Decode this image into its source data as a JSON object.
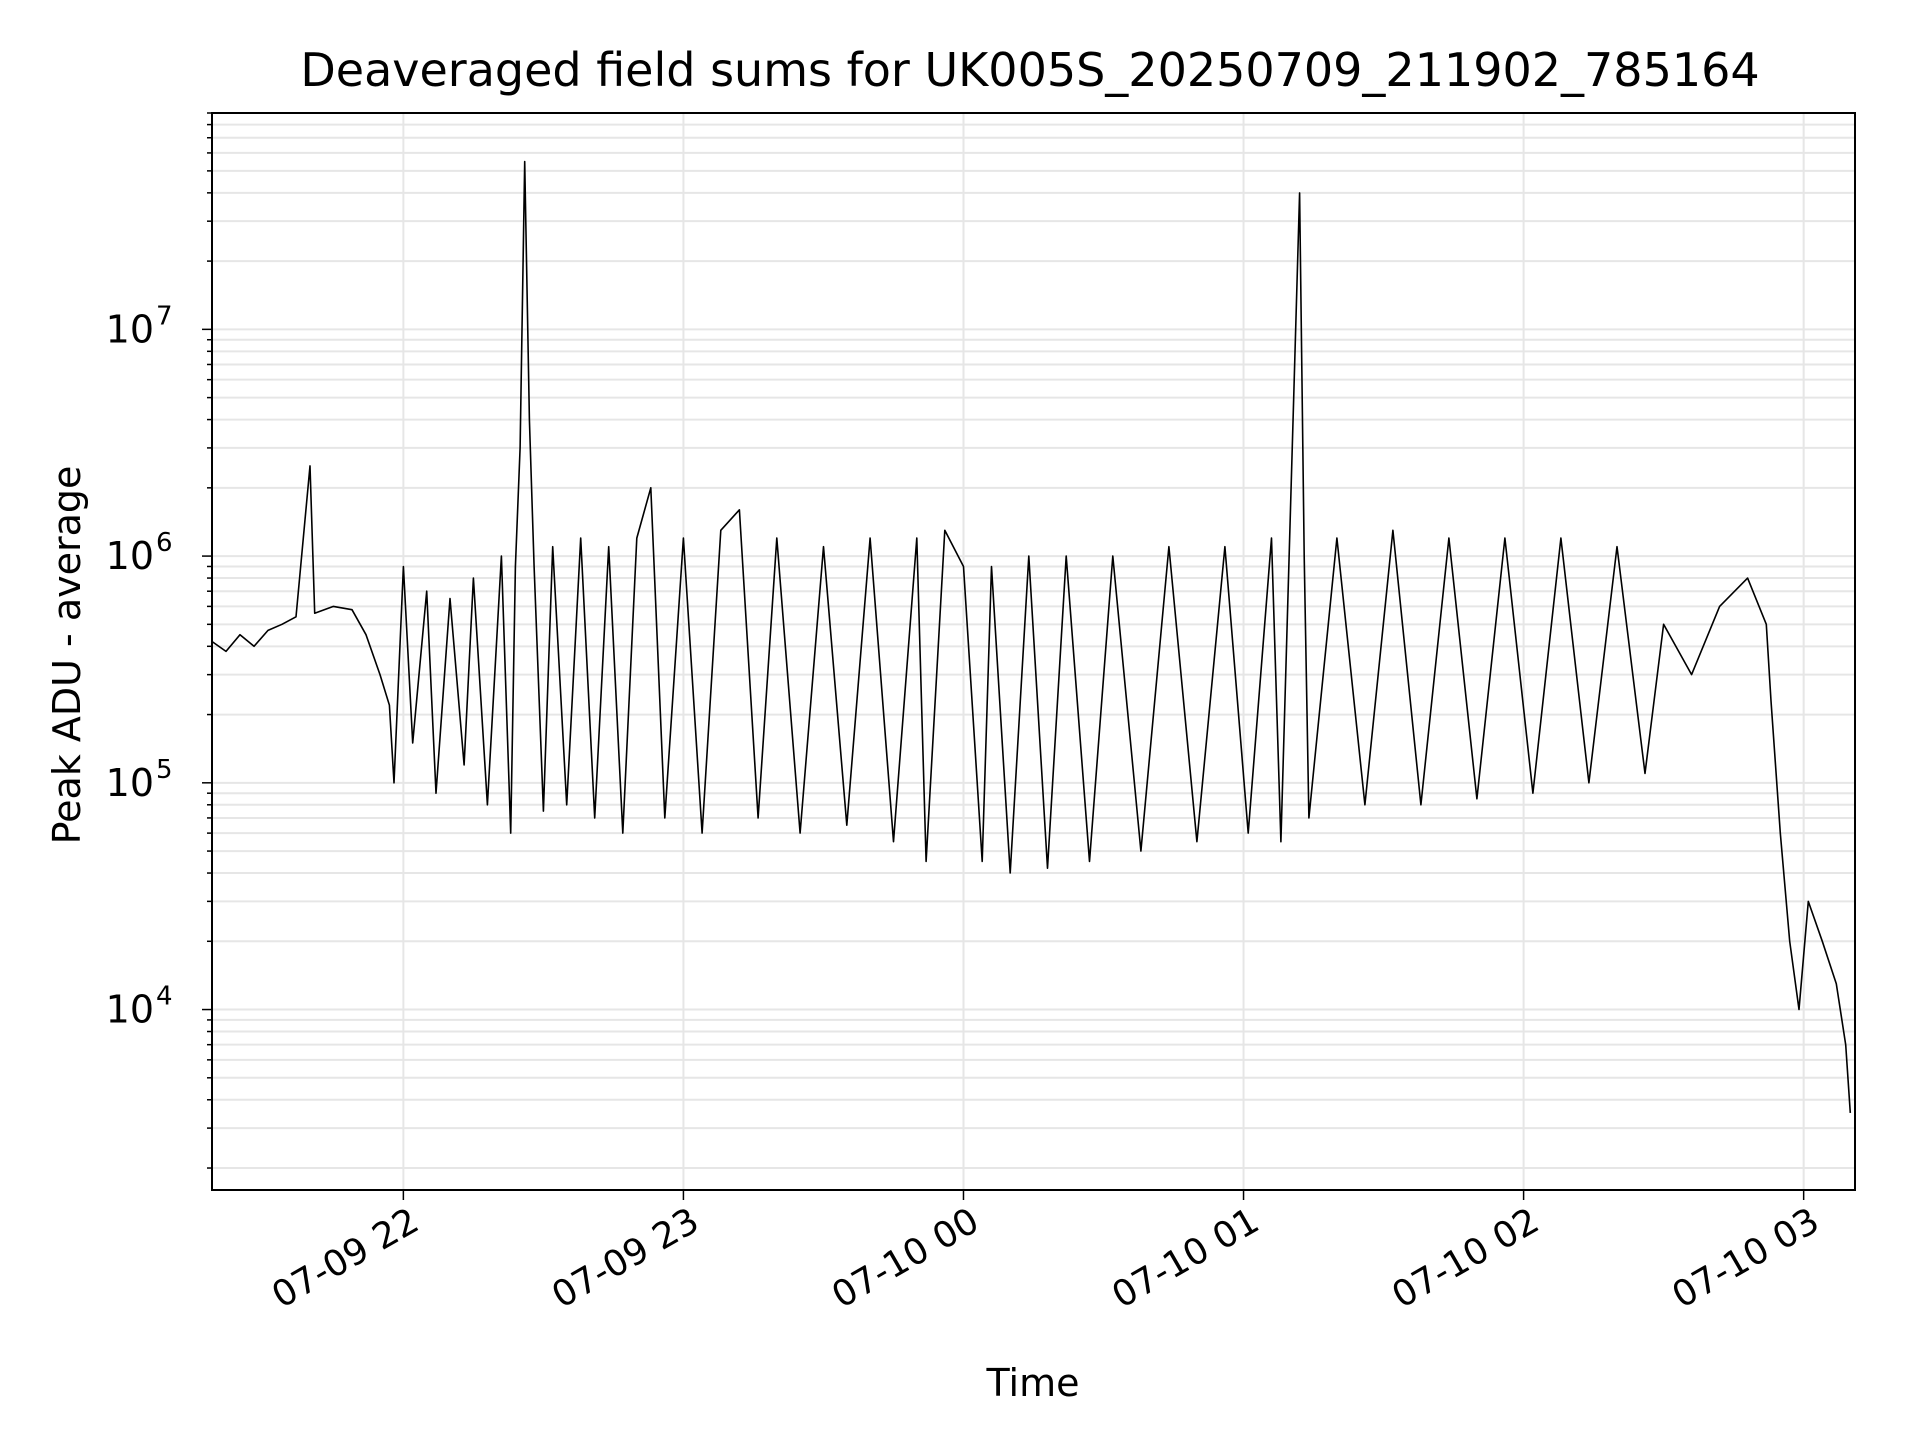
{
  "chart_data": {
    "type": "line",
    "title": "Deaveraged field sums for UK005S_20250709_211902_785164",
    "xlabel": "Time",
    "ylabel": "Peak ADU - average",
    "yscale": "log",
    "grid": true,
    "line_color": "#000000",
    "grid_color": "#e6e6e6",
    "x_range": [
      "2025-07-09 21:19:00",
      "2025-07-10 03:11:00"
    ],
    "ylim": [
      1600,
      90000000
    ],
    "x_ticks": [
      {
        "value": "2025-07-09 22:00:00",
        "label": "07-09 22"
      },
      {
        "value": "2025-07-09 23:00:00",
        "label": "07-09 23"
      },
      {
        "value": "2025-07-10 00:00:00",
        "label": "07-10 00"
      },
      {
        "value": "2025-07-10 01:00:00",
        "label": "07-10 01"
      },
      {
        "value": "2025-07-10 02:00:00",
        "label": "07-10 02"
      },
      {
        "value": "2025-07-10 03:00:00",
        "label": "07-10 03"
      }
    ],
    "y_ticks": [
      {
        "value": 10000,
        "base": "10",
        "exp": "4"
      },
      {
        "value": 100000,
        "base": "10",
        "exp": "5"
      },
      {
        "value": 1000000,
        "base": "10",
        "exp": "6"
      },
      {
        "value": 10000000,
        "base": "10",
        "exp": "7"
      }
    ],
    "series": [
      {
        "points": [
          [
            "2025-07-09 21:19:00",
            420000
          ],
          [
            "2025-07-09 21:22:00",
            380000
          ],
          [
            "2025-07-09 21:25:00",
            450000
          ],
          [
            "2025-07-09 21:28:00",
            400000
          ],
          [
            "2025-07-09 21:31:00",
            470000
          ],
          [
            "2025-07-09 21:34:00",
            500000
          ],
          [
            "2025-07-09 21:37:00",
            540000
          ],
          [
            "2025-07-09 21:40:00",
            2500000
          ],
          [
            "2025-07-09 21:41:00",
            560000
          ],
          [
            "2025-07-09 21:45:00",
            600000
          ],
          [
            "2025-07-09 21:49:00",
            580000
          ],
          [
            "2025-07-09 21:52:00",
            450000
          ],
          [
            "2025-07-09 21:55:00",
            300000
          ],
          [
            "2025-07-09 21:57:00",
            220000
          ],
          [
            "2025-07-09 21:58:00",
            100000
          ],
          [
            "2025-07-09 22:00:00",
            900000
          ],
          [
            "2025-07-09 22:02:00",
            150000
          ],
          [
            "2025-07-09 22:05:00",
            700000
          ],
          [
            "2025-07-09 22:07:00",
            90000
          ],
          [
            "2025-07-09 22:10:00",
            650000
          ],
          [
            "2025-07-09 22:13:00",
            120000
          ],
          [
            "2025-07-09 22:15:00",
            800000
          ],
          [
            "2025-07-09 22:18:00",
            80000
          ],
          [
            "2025-07-09 22:21:00",
            1000000
          ],
          [
            "2025-07-09 22:23:00",
            60000
          ],
          [
            "2025-07-09 22:24:00",
            900000
          ],
          [
            "2025-07-09 22:25:00",
            3000000
          ],
          [
            "2025-07-09 22:26:00",
            55000000
          ],
          [
            "2025-07-09 22:27:00",
            4000000
          ],
          [
            "2025-07-09 22:28:00",
            900000
          ],
          [
            "2025-07-09 22:30:00",
            75000
          ],
          [
            "2025-07-09 22:32:00",
            1100000
          ],
          [
            "2025-07-09 22:35:00",
            80000
          ],
          [
            "2025-07-09 22:38:00",
            1200000
          ],
          [
            "2025-07-09 22:41:00",
            70000
          ],
          [
            "2025-07-09 22:44:00",
            1100000
          ],
          [
            "2025-07-09 22:47:00",
            60000
          ],
          [
            "2025-07-09 22:50:00",
            1200000
          ],
          [
            "2025-07-09 22:53:00",
            2000000
          ],
          [
            "2025-07-09 22:56:00",
            70000
          ],
          [
            "2025-07-09 23:00:00",
            1200000
          ],
          [
            "2025-07-09 23:04:00",
            60000
          ],
          [
            "2025-07-09 23:08:00",
            1300000
          ],
          [
            "2025-07-09 23:12:00",
            1600000
          ],
          [
            "2025-07-09 23:16:00",
            70000
          ],
          [
            "2025-07-09 23:20:00",
            1200000
          ],
          [
            "2025-07-09 23:25:00",
            60000
          ],
          [
            "2025-07-09 23:30:00",
            1100000
          ],
          [
            "2025-07-09 23:35:00",
            65000
          ],
          [
            "2025-07-09 23:40:00",
            1200000
          ],
          [
            "2025-07-09 23:45:00",
            55000
          ],
          [
            "2025-07-09 23:50:00",
            1200000
          ],
          [
            "2025-07-09 23:52:00",
            45000
          ],
          [
            "2025-07-09 23:56:00",
            1300000
          ],
          [
            "2025-07-10 00:00:00",
            900000
          ],
          [
            "2025-07-10 00:04:00",
            45000
          ],
          [
            "2025-07-10 00:06:00",
            900000
          ],
          [
            "2025-07-10 00:10:00",
            40000
          ],
          [
            "2025-07-10 00:14:00",
            1000000
          ],
          [
            "2025-07-10 00:18:00",
            42000
          ],
          [
            "2025-07-10 00:22:00",
            1000000
          ],
          [
            "2025-07-10 00:27:00",
            45000
          ],
          [
            "2025-07-10 00:32:00",
            1000000
          ],
          [
            "2025-07-10 00:38:00",
            50000
          ],
          [
            "2025-07-10 00:44:00",
            1100000
          ],
          [
            "2025-07-10 00:50:00",
            55000
          ],
          [
            "2025-07-10 00:56:00",
            1100000
          ],
          [
            "2025-07-10 01:01:00",
            60000
          ],
          [
            "2025-07-10 01:06:00",
            1200000
          ],
          [
            "2025-07-10 01:08:00",
            55000
          ],
          [
            "2025-07-10 01:12:00",
            40000000
          ],
          [
            "2025-07-10 01:13:00",
            1000000
          ],
          [
            "2025-07-10 01:14:00",
            70000
          ],
          [
            "2025-07-10 01:20:00",
            1200000
          ],
          [
            "2025-07-10 01:26:00",
            80000
          ],
          [
            "2025-07-10 01:32:00",
            1300000
          ],
          [
            "2025-07-10 01:38:00",
            80000
          ],
          [
            "2025-07-10 01:44:00",
            1200000
          ],
          [
            "2025-07-10 01:50:00",
            85000
          ],
          [
            "2025-07-10 01:56:00",
            1200000
          ],
          [
            "2025-07-10 02:02:00",
            90000
          ],
          [
            "2025-07-10 02:08:00",
            1200000
          ],
          [
            "2025-07-10 02:14:00",
            100000
          ],
          [
            "2025-07-10 02:20:00",
            1100000
          ],
          [
            "2025-07-10 02:26:00",
            110000
          ],
          [
            "2025-07-10 02:30:00",
            500000
          ],
          [
            "2025-07-10 02:36:00",
            300000
          ],
          [
            "2025-07-10 02:42:00",
            600000
          ],
          [
            "2025-07-10 02:48:00",
            800000
          ],
          [
            "2025-07-10 02:52:00",
            500000
          ],
          [
            "2025-07-10 02:53:00",
            230000
          ],
          [
            "2025-07-10 02:55:00",
            60000
          ],
          [
            "2025-07-10 02:57:00",
            20000
          ],
          [
            "2025-07-10 02:59:00",
            10000
          ],
          [
            "2025-07-10 03:01:00",
            30000
          ],
          [
            "2025-07-10 03:04:00",
            20000
          ],
          [
            "2025-07-10 03:07:00",
            13000
          ],
          [
            "2025-07-10 03:09:00",
            7000
          ],
          [
            "2025-07-10 03:10:00",
            3500
          ]
        ]
      }
    ]
  }
}
